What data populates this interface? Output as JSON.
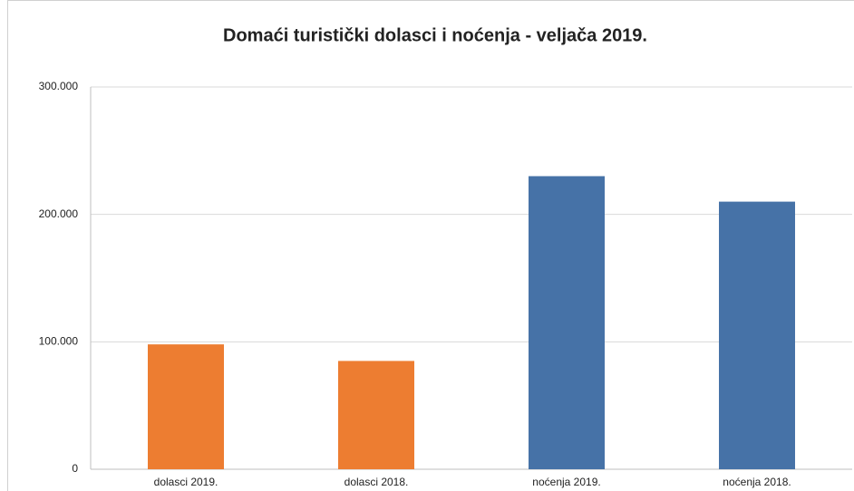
{
  "chart_data": {
    "type": "bar",
    "title": "Domaći turistički dolasci i noćenja - veljača 2019.",
    "categories": [
      "dolasci 2019.",
      "dolasci 2018.",
      "noćenja 2019.",
      "noćenja 2018."
    ],
    "values": [
      98000,
      85000,
      230000,
      210000
    ],
    "colors": [
      "#ed7d31",
      "#ed7d31",
      "#4672a7",
      "#4672a7"
    ],
    "ylim": [
      0,
      300000
    ],
    "yticks": [
      0,
      {
        "value": 100000,
        "label": "100.000"
      },
      {
        "value": 200000,
        "label": "200.000"
      },
      {
        "value": 300000,
        "label": "300.000"
      }
    ],
    "grid": true
  }
}
